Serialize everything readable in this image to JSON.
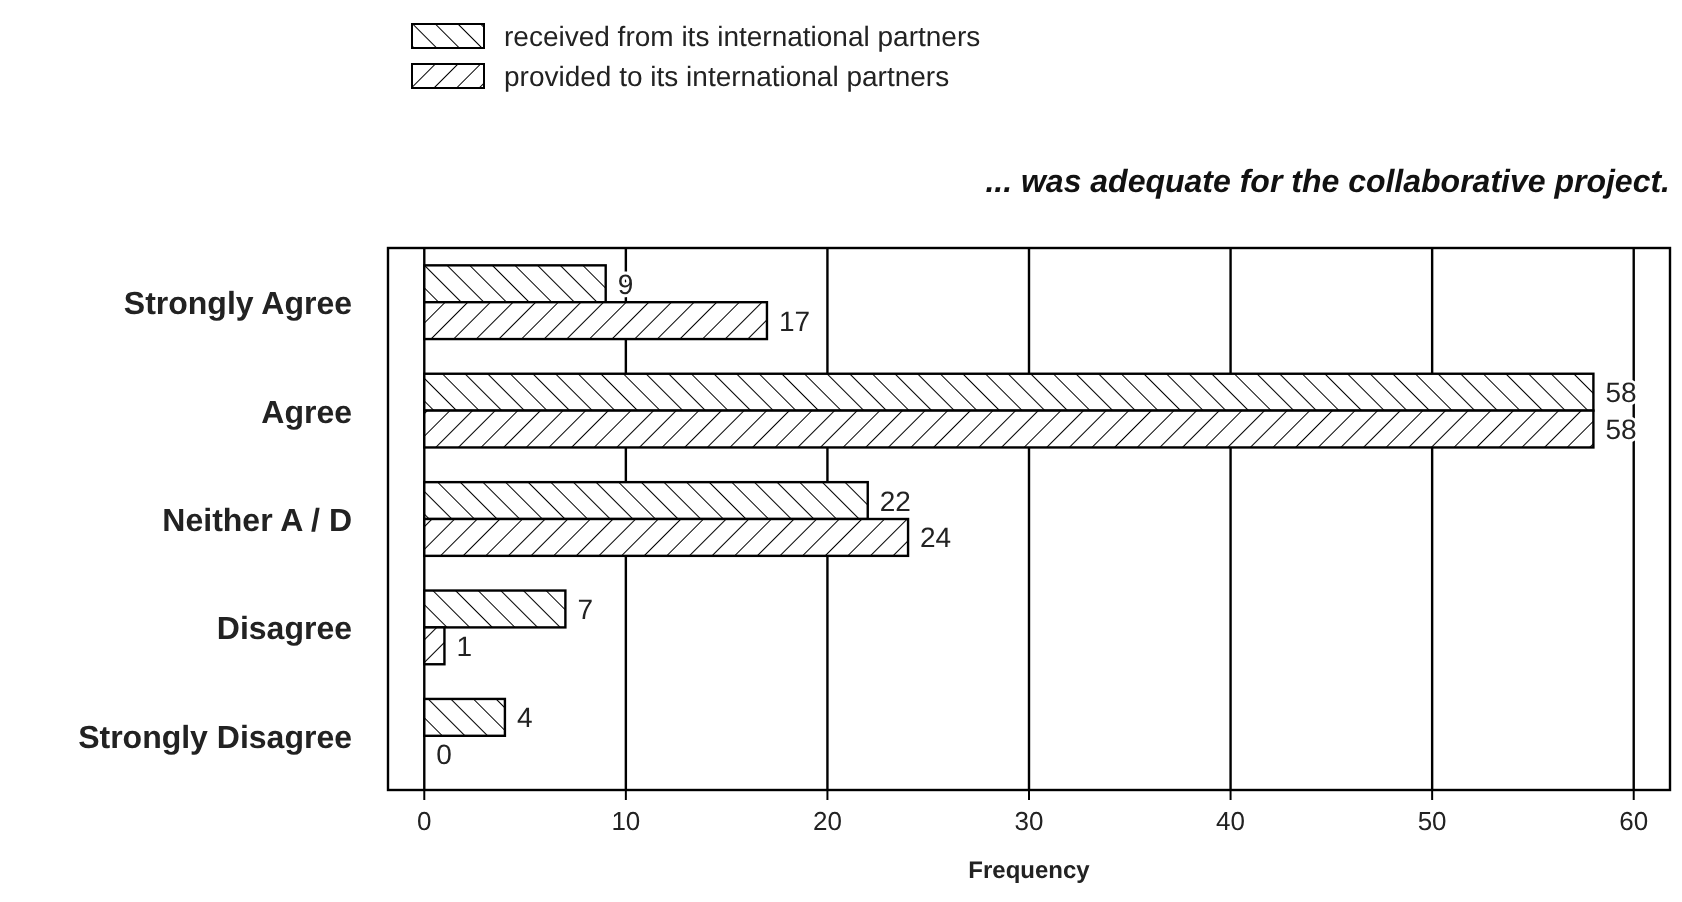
{
  "chart_data": {
    "type": "bar",
    "orientation": "horizontal",
    "title": "... was adequate for the collaborative project.",
    "xlabel": "Frequency",
    "categories": [
      "Strongly Agree",
      "Agree",
      "Neither A / D",
      "Disagree",
      "Strongly Disagree"
    ],
    "series": [
      {
        "name": "received from its international partners",
        "color": "#000000",
        "values": [
          9,
          58,
          22,
          7,
          4
        ]
      },
      {
        "name": "provided to its international partners",
        "color": "#000000",
        "values": [
          17,
          58,
          24,
          1,
          0
        ]
      }
    ],
    "xlim": [
      -1.8,
      61.8
    ],
    "xticks": [
      0,
      10,
      20,
      30,
      40,
      50,
      60
    ],
    "grid": "x",
    "legend": "top left",
    "data_labels": true
  }
}
